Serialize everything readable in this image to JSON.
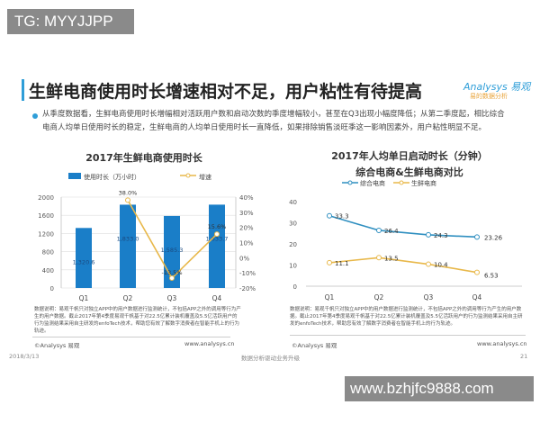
{
  "watermark_top": "TG: MYYJJPP",
  "watermark_bottom": "www.bzhjfc9888.com",
  "title": "生鲜电商使用时长增速相对不足，用户粘性有待提高",
  "logo": "Analysys 易观",
  "logo_sub": "易的数据分析",
  "paragraph": "从季度数据看，生鲜电商使用时长增幅相对活跃用户数和启动次数的季度增幅较小，甚至在Q3出现小幅度降低；从第二季度起，相比综合电商人均单日使用时长的稳定，生鲜电商的人均单日使用时长一直降低，如果排除销售淡旺季这一影响因素外，用户粘性明显不足。",
  "note": "数据说明：易观千帆只对独立APP中的用户数据进行监测统计，不包括APP之外的调用等行为产生的用户数据。截止2017年第4季度易观千帆基于对22.5亿累计装机覆盖及5.5亿活跃用户的行为监测结果采用自主研发的enfoTech技术，帮助您有效了解数字消费者在智能手机上的行为轨迹。",
  "source": "©Analysys 易观",
  "url": "www.analysys.cn",
  "footer": {
    "date": "2018/3/13",
    "center": "数据分析驱动业务升级",
    "page": "21"
  },
  "colors": {
    "accent": "#2f9ed8",
    "bar": "#1a7ec8",
    "growth": "#e8b84a",
    "comprehensive": "#2f8fc0",
    "fresh": "#e8b84a"
  },
  "chart_data": [
    {
      "type": "bar",
      "title": "2017年生鲜电商使用时长",
      "categories": [
        "Q1",
        "Q2",
        "Q3",
        "Q4"
      ],
      "series": [
        {
          "name": "使用时长（万小时）",
          "values": [
            1320.6,
            1833.0,
            1585.3,
            1833.7
          ],
          "labels": [
            "1,320.6",
            "1,833.0",
            "1,585.3",
            "1,833.7"
          ],
          "axis": "left"
        },
        {
          "name": "增速",
          "type": "line",
          "values": [
            null,
            38.0,
            -13.5,
            15.6
          ],
          "labels": [
            "",
            "38.0%",
            "-13.5%",
            "15.6%"
          ],
          "axis": "right"
        }
      ],
      "ylim": [
        0,
        2000
      ],
      "yticks": [
        "0",
        "400",
        "800",
        "1200",
        "1600",
        "2000"
      ],
      "y2lim": [
        -20,
        40
      ],
      "y2ticks": [
        "-20%",
        "-10%",
        "0%",
        "10%",
        "20%",
        "30%",
        "40%"
      ],
      "grid": true,
      "legend": "top"
    },
    {
      "type": "line",
      "title": "2017年人均单日启动时长（分钟）",
      "subtitle": "综合电商&生鲜电商对比",
      "categories": [
        "Q1",
        "Q2",
        "Q3",
        "Q4"
      ],
      "series": [
        {
          "name": "综合电商",
          "values": [
            33.3,
            26.4,
            24.3,
            23.26
          ],
          "labels": [
            "33.3",
            "26.4",
            "24.3",
            "23.26"
          ]
        },
        {
          "name": "生鲜电商",
          "values": [
            11.1,
            13.5,
            10.4,
            6.53
          ],
          "labels": [
            "11.1",
            "13.5",
            "10.4",
            "6.53"
          ]
        }
      ],
      "ylim": [
        0,
        40
      ],
      "yticks": [
        "0",
        "10",
        "20",
        "30",
        "40"
      ],
      "grid": false,
      "legend": "top"
    }
  ]
}
